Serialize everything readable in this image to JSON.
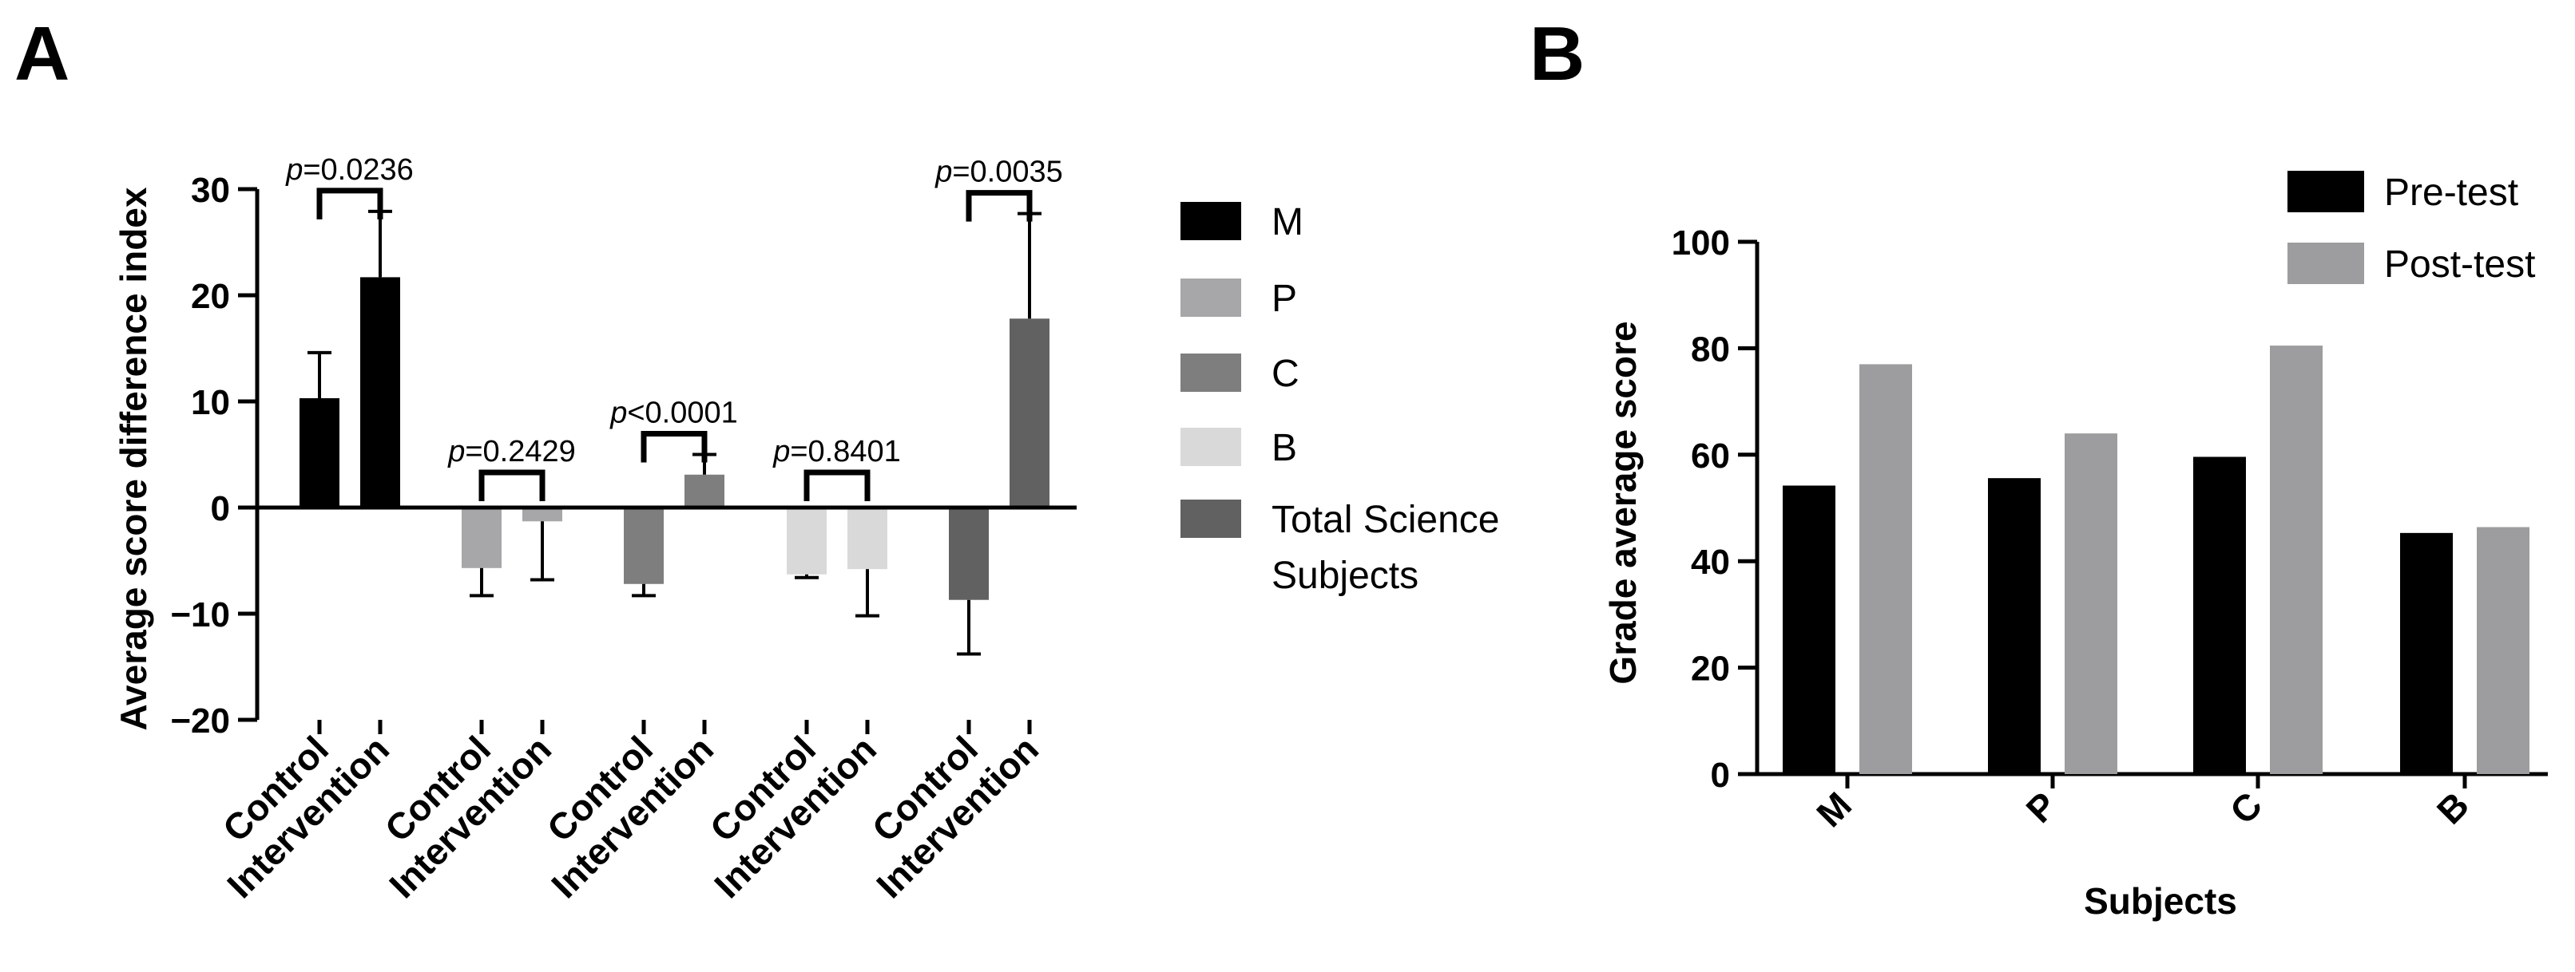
{
  "colors": {
    "M": "#000000",
    "P": "#a7a7a9",
    "C": "#7e7e7e",
    "B": "#d9d9d9",
    "Total": "#616161",
    "pre": "#000000",
    "post": "#9d9d9f"
  },
  "chart_data": [
    {
      "panel": "A",
      "type": "bar",
      "ylabel": "Average score difference index",
      "xlabel": "",
      "ylim": [
        -20,
        30
      ],
      "yticks": [
        30,
        20,
        10,
        0,
        -10,
        -20
      ],
      "ytick_labels": [
        "30",
        "20",
        "10",
        "0",
        "−10",
        "−20"
      ],
      "legend_position": "right",
      "legend": [
        {
          "key": "M",
          "label": "M"
        },
        {
          "key": "P",
          "label": "P"
        },
        {
          "key": "C",
          "label": "C"
        },
        {
          "key": "B",
          "label": "B"
        },
        {
          "key": "Total",
          "label": "Total Science Subjects"
        }
      ],
      "groups": [
        {
          "key": "M",
          "name": "M",
          "p_prefix": "p",
          "p_suffix": "=0.0236",
          "bars": [
            {
              "category": "Control",
              "value": 10.3,
              "error": 4.3
            },
            {
              "category": "Intervention",
              "value": 21.7,
              "error": 6.2
            }
          ]
        },
        {
          "key": "P",
          "name": "P",
          "p_prefix": "p",
          "p_suffix": "=0.2429",
          "bars": [
            {
              "category": "Control",
              "value": -5.7,
              "error": 2.6
            },
            {
              "category": "Intervention",
              "value": -1.3,
              "error": 5.5
            }
          ]
        },
        {
          "key": "C",
          "name": "C",
          "p_prefix": "p",
          "p_suffix": "<0.0001",
          "bars": [
            {
              "category": "Control",
              "value": -7.2,
              "error": 1.1
            },
            {
              "category": "Intervention",
              "value": 3.1,
              "error": 1.9
            }
          ]
        },
        {
          "key": "B",
          "name": "B",
          "p_prefix": "p",
          "p_suffix": "=0.8401",
          "bars": [
            {
              "category": "Control",
              "value": -6.3,
              "error": 0.3
            },
            {
              "category": "Intervention",
              "value": -5.8,
              "error": 4.4
            }
          ]
        },
        {
          "key": "Total",
          "name": "Total Science Subjects",
          "p_prefix": "p",
          "p_suffix": "=0.0035",
          "bars": [
            {
              "category": "Control",
              "value": -8.7,
              "error": 5.1
            },
            {
              "category": "Intervention",
              "value": 17.8,
              "error": 9.9
            }
          ]
        }
      ]
    },
    {
      "panel": "B",
      "type": "bar",
      "ylabel": "Grade average score",
      "xlabel": "Subjects",
      "ylim": [
        0,
        100
      ],
      "yticks": [
        0,
        20,
        40,
        60,
        80,
        100
      ],
      "ytick_labels": [
        "0",
        "20",
        "40",
        "60",
        "80",
        "100"
      ],
      "legend_position": "top-right",
      "categories": [
        "M",
        "P",
        "C",
        "B"
      ],
      "series": [
        {
          "key": "pre",
          "name": "Pre-test",
          "values": [
            54.2,
            55.6,
            59.6,
            45.3
          ]
        },
        {
          "key": "post",
          "name": "Post-test",
          "values": [
            77.0,
            64.0,
            80.5,
            46.4
          ]
        }
      ]
    }
  ]
}
